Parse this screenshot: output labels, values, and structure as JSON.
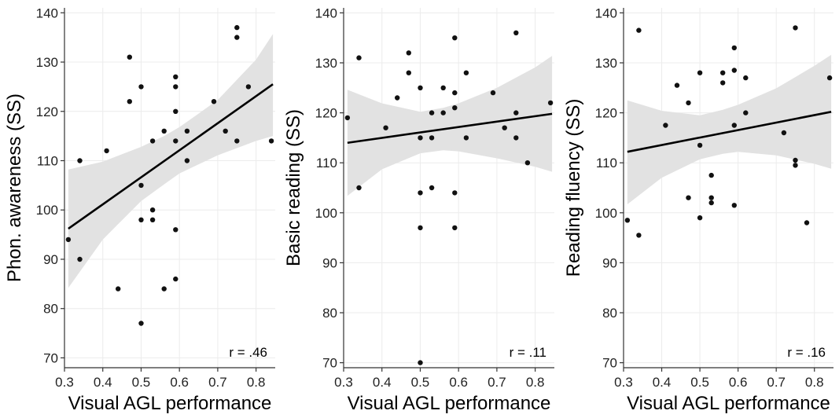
{
  "colors": {
    "points": "#111111",
    "fit_line": "#000000",
    "ribbon": "#e2e2e2",
    "grid": "#ececec",
    "axis": "#333333",
    "text": "#222222"
  },
  "chart_data": [
    {
      "type": "scatter",
      "title": "",
      "xlabel": "Visual AGL performance",
      "ylabel": "Phon. awareness (SS)",
      "annotation": "r = .46",
      "xlim": [
        0.3,
        0.85
      ],
      "ylim": [
        68,
        141
      ],
      "xticks": [
        0.3,
        0.4,
        0.5,
        0.6,
        0.7,
        0.8
      ],
      "xtick_labels": [
        "0.3",
        "0.4",
        "0.5",
        "0.6",
        "0.7",
        "0.8"
      ],
      "yticks": [
        70,
        80,
        90,
        100,
        110,
        120,
        130,
        140
      ],
      "ytick_labels": [
        "70",
        "80",
        "90",
        "100",
        "110",
        "120",
        "130",
        "140"
      ],
      "grid": true,
      "fit": {
        "x": [
          0.31,
          0.844
        ],
        "y": [
          96.2,
          125.5
        ]
      },
      "ribbon": {
        "x": [
          0.31,
          0.4,
          0.5,
          0.56,
          0.6,
          0.7,
          0.8,
          0.844
        ],
        "lower": [
          84.2,
          94.0,
          101.8,
          105.2,
          107.4,
          111.1,
          114.0,
          115.0
        ],
        "upper": [
          108.2,
          109.8,
          112.8,
          115.0,
          116.8,
          122.3,
          130.5,
          135.7
        ]
      },
      "x": [
        0.31,
        0.34,
        0.34,
        0.41,
        0.44,
        0.47,
        0.47,
        0.5,
        0.5,
        0.5,
        0.5,
        0.53,
        0.53,
        0.53,
        0.56,
        0.56,
        0.59,
        0.59,
        0.59,
        0.59,
        0.59,
        0.59,
        0.62,
        0.62,
        0.69,
        0.72,
        0.75,
        0.75,
        0.75,
        0.78,
        0.84
      ],
      "y": [
        94,
        110,
        90,
        112,
        84,
        131,
        122,
        125,
        105,
        98,
        77,
        114,
        100,
        98,
        116,
        84,
        127,
        125,
        120,
        96,
        86,
        114,
        116,
        110,
        122,
        116,
        137,
        135,
        114,
        125,
        114
      ]
    },
    {
      "type": "scatter",
      "title": "",
      "xlabel": "Visual AGL performance",
      "ylabel": "Basic reading (SS)",
      "annotation": "r = .11",
      "xlim": [
        0.3,
        0.85
      ],
      "ylim": [
        69,
        141
      ],
      "xticks": [
        0.3,
        0.4,
        0.5,
        0.6,
        0.7,
        0.8
      ],
      "xtick_labels": [
        "0.3",
        "0.4",
        "0.5",
        "0.6",
        "0.7",
        "0.8"
      ],
      "yticks": [
        70,
        80,
        90,
        100,
        110,
        120,
        130,
        140
      ],
      "ytick_labels": [
        "70",
        "80",
        "90",
        "100",
        "110",
        "120",
        "130",
        "140"
      ],
      "grid": true,
      "fit": {
        "x": [
          0.31,
          0.844
        ],
        "y": [
          114.0,
          119.8
        ]
      },
      "ribbon": {
        "x": [
          0.31,
          0.4,
          0.5,
          0.56,
          0.6,
          0.7,
          0.8,
          0.844
        ],
        "lower": [
          103.4,
          108.7,
          111.9,
          112.5,
          112.3,
          110.9,
          109.2,
          108.2
        ],
        "upper": [
          124.6,
          121.9,
          120.2,
          121.0,
          121.9,
          125.0,
          129.1,
          131.4
        ]
      },
      "x": [
        0.31,
        0.34,
        0.34,
        0.41,
        0.44,
        0.47,
        0.47,
        0.5,
        0.5,
        0.5,
        0.5,
        0.5,
        0.53,
        0.53,
        0.53,
        0.56,
        0.56,
        0.59,
        0.59,
        0.59,
        0.59,
        0.59,
        0.62,
        0.62,
        0.69,
        0.72,
        0.75,
        0.75,
        0.75,
        0.78,
        0.84
      ],
      "y": [
        119,
        131,
        105,
        117,
        123,
        132,
        128,
        125,
        115,
        104,
        97,
        70,
        120,
        115,
        105,
        125,
        120,
        135,
        124,
        121,
        104,
        97,
        128,
        115,
        124,
        117,
        136,
        120,
        115,
        110,
        122
      ]
    },
    {
      "type": "scatter",
      "title": "",
      "xlabel": "Visual AGL performance",
      "ylabel": "Reading fluency (SS)",
      "annotation": "r = .16",
      "xlim": [
        0.3,
        0.85
      ],
      "ylim": [
        69,
        141
      ],
      "xticks": [
        0.3,
        0.4,
        0.5,
        0.6,
        0.7,
        0.8
      ],
      "xtick_labels": [
        "0.3",
        "0.4",
        "0.5",
        "0.6",
        "0.7",
        "0.8"
      ],
      "yticks": [
        70,
        80,
        90,
        100,
        110,
        120,
        130,
        140
      ],
      "ytick_labels": [
        "70",
        "80",
        "90",
        "100",
        "110",
        "120",
        "130",
        "140"
      ],
      "grid": true,
      "fit": {
        "x": [
          0.31,
          0.844
        ],
        "y": [
          112.2,
          120.2
        ]
      },
      "ribbon": {
        "x": [
          0.31,
          0.4,
          0.5,
          0.56,
          0.6,
          0.7,
          0.8,
          0.844
        ],
        "lower": [
          101.7,
          107.0,
          110.7,
          111.8,
          112.2,
          111.5,
          109.8,
          108.8
        ],
        "upper": [
          122.5,
          120.4,
          119.5,
          120.6,
          121.6,
          124.9,
          129.4,
          131.6
        ]
      },
      "x": [
        0.31,
        0.34,
        0.34,
        0.41,
        0.44,
        0.47,
        0.47,
        0.5,
        0.5,
        0.5,
        0.53,
        0.53,
        0.53,
        0.56,
        0.56,
        0.59,
        0.59,
        0.59,
        0.59,
        0.62,
        0.62,
        0.72,
        0.75,
        0.75,
        0.75,
        0.78,
        0.84
      ],
      "y": [
        98.5,
        136.5,
        95.5,
        117.5,
        125.5,
        122,
        103,
        128,
        113.5,
        99,
        107.5,
        103,
        102,
        128,
        126,
        133,
        128.5,
        117.5,
        101.5,
        127,
        120,
        116,
        137,
        110.5,
        109.5,
        98,
        127
      ]
    }
  ]
}
